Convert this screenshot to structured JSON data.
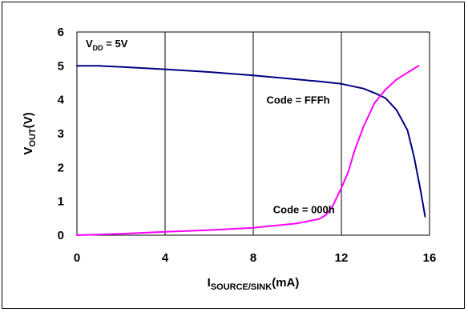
{
  "chart_data": {
    "type": "line",
    "xlim": [
      0,
      16
    ],
    "ylim": [
      0,
      6
    ],
    "x_ticks": [
      "0",
      "4",
      "8",
      "12",
      "16"
    ],
    "y_ticks": [
      "0",
      "1",
      "2",
      "3",
      "4",
      "5",
      "6"
    ],
    "xlabel": {
      "main": "I",
      "sub": "SOURCE/SINK",
      "suffix": "(mA)"
    },
    "ylabel": {
      "main": "V",
      "sub": "OUT",
      "suffix": "(V)"
    },
    "grid": "vertical",
    "series": [
      {
        "name": "Code = FFFh",
        "color": "#000080",
        "points": [
          [
            0,
            5.0
          ],
          [
            1,
            5.0
          ],
          [
            2,
            4.97
          ],
          [
            4,
            4.9
          ],
          [
            6,
            4.82
          ],
          [
            8,
            4.72
          ],
          [
            10,
            4.6
          ],
          [
            11,
            4.54
          ],
          [
            12,
            4.47
          ],
          [
            13,
            4.33
          ],
          [
            13.5,
            4.2
          ],
          [
            14,
            4.05
          ],
          [
            14.5,
            3.7
          ],
          [
            15,
            3.1
          ],
          [
            15.3,
            2.3
          ],
          [
            15.6,
            1.3
          ],
          [
            15.8,
            0.55
          ]
        ]
      },
      {
        "name": "Code = 000h",
        "color": "#ff00ff",
        "points": [
          [
            0,
            0.0
          ],
          [
            2,
            0.04
          ],
          [
            4,
            0.1
          ],
          [
            6,
            0.15
          ],
          [
            8,
            0.22
          ],
          [
            10,
            0.35
          ],
          [
            11,
            0.48
          ],
          [
            11.3,
            0.6
          ],
          [
            11.6,
            0.85
          ],
          [
            12,
            1.4
          ],
          [
            12.3,
            1.85
          ],
          [
            12.6,
            2.5
          ],
          [
            13.0,
            3.2
          ],
          [
            13.5,
            3.9
          ],
          [
            14.0,
            4.3
          ],
          [
            14.5,
            4.6
          ],
          [
            15.0,
            4.8
          ],
          [
            15.5,
            5.0
          ]
        ]
      }
    ],
    "annotations": [
      {
        "id": "vdd",
        "main": "V",
        "sub": "DD",
        "suffix": " = 5V",
        "x": 0.4,
        "y": 5.55
      },
      {
        "id": "fff",
        "text": "Code = FFFh",
        "x": 8.6,
        "y": 3.88
      },
      {
        "id": "zero",
        "text": "Code = 000h",
        "x": 8.9,
        "y": 0.65
      }
    ]
  }
}
